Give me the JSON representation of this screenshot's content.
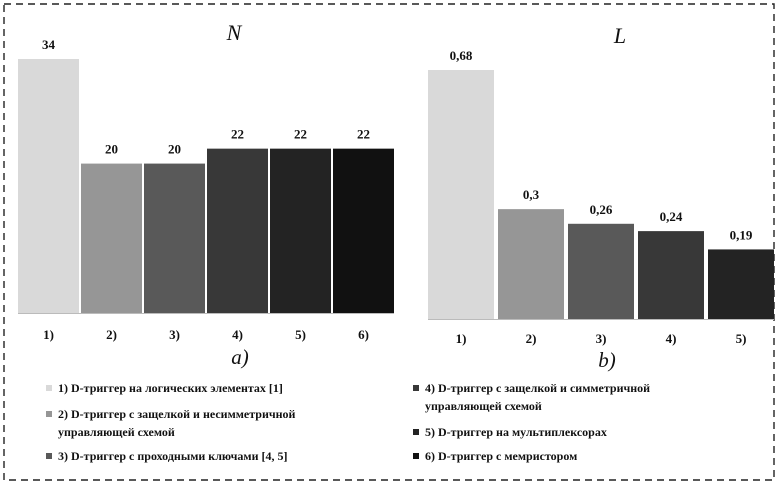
{
  "chart_data": [
    {
      "type": "bar",
      "title": "N",
      "subtitle": "a)",
      "categories": [
        "1)",
        "2)",
        "3)",
        "4)",
        "5)",
        "6)"
      ],
      "values": [
        34,
        20,
        20,
        22,
        22,
        22
      ],
      "value_labels": [
        "34",
        "20",
        "20",
        "22",
        "22",
        "22"
      ],
      "colors": [
        "#d9d9d9",
        "#969696",
        "#595959",
        "#383838",
        "#232323",
        "#111111"
      ],
      "ylim": [
        0,
        34
      ],
      "grid": false
    },
    {
      "type": "bar",
      "title": "L",
      "subtitle": "b)",
      "categories": [
        "1)",
        "2)",
        "3)",
        "4)",
        "5)"
      ],
      "values": [
        0.68,
        0.3,
        0.26,
        0.24,
        0.19
      ],
      "value_labels": [
        "0,68",
        "0,3",
        "0,26",
        "0,24",
        "0,19"
      ],
      "colors": [
        "#d9d9d9",
        "#969696",
        "#595959",
        "#383838",
        "#232323"
      ],
      "ylim": [
        0,
        0.68
      ],
      "grid": false
    }
  ],
  "legend": {
    "left": [
      {
        "text": "1) D-триггер на логических элементах [1]",
        "color": "#d9d9d9"
      },
      {
        "text": "2) D-триггер с защелкой и несимметричной",
        "text2": "управляющей схемой",
        "color": "#969696"
      },
      {
        "text": "3) D-триггер с проходными ключами [4, 5]",
        "color": "#595959"
      }
    ],
    "right": [
      {
        "text": "4) D-триггер с защелкой и симметричной",
        "text2": "управляющей схемой",
        "color": "#383838"
      },
      {
        "text": "5) D-триггер на мультиплексорах",
        "color": "#232323"
      },
      {
        "text": "6) D-триггер с мемристором",
        "color": "#111111"
      }
    ]
  }
}
